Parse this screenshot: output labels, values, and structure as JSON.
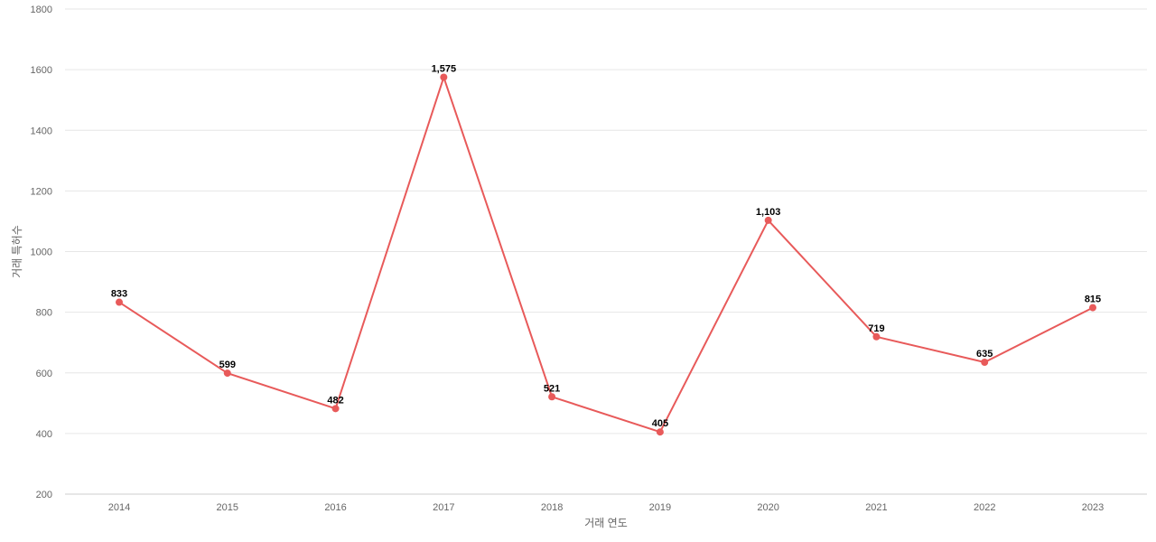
{
  "chart_data": {
    "type": "line",
    "title": "",
    "xlabel": "거래 연도",
    "ylabel": "거래 특허수",
    "categories": [
      "2014",
      "2015",
      "2016",
      "2017",
      "2018",
      "2019",
      "2020",
      "2021",
      "2022",
      "2023"
    ],
    "series": [
      {
        "values": [
          833,
          599,
          482,
          1575,
          521,
          405,
          1103,
          719,
          635,
          815
        ],
        "labels": [
          "833",
          "599",
          "482",
          "1,575",
          "521",
          "405",
          "1,103",
          "719",
          "635",
          "815"
        ],
        "color": "#e85a5a"
      }
    ],
    "ylim": [
      200,
      1800
    ],
    "yticks": [
      200,
      400,
      600,
      800,
      1000,
      1200,
      1400,
      1600,
      1800
    ],
    "ytick_labels": [
      "200",
      "400",
      "600",
      "800",
      "1000",
      "1200",
      "1400",
      "1600",
      "1800"
    ],
    "grid": true,
    "legend": "none"
  }
}
